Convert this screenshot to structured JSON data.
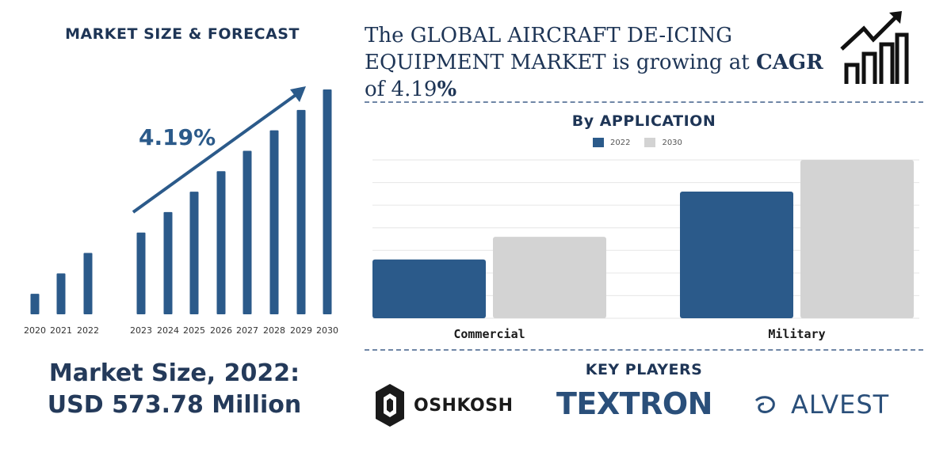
{
  "forecast": {
    "title": "MARKET SIZE & FORECAST",
    "cagr_label": "4.19%",
    "market_size_line1": "Market Size, 2022:",
    "market_size_line2": "USD 573.78 Million"
  },
  "headline": {
    "part1": "The GLOBAL AIRCRAFT DE-ICING EQUIPMENT MARKET is growing at ",
    "cagr_word": "CAGR",
    "part2": " of 4.19",
    "percent": "%"
  },
  "key_players": {
    "title": "KEY PLAYERS",
    "logos": [
      {
        "name": "OSHKOSH",
        "icon": "oshkosh-shield-icon"
      },
      {
        "name": "TEXTRON",
        "icon": ""
      },
      {
        "name": "ALVEST",
        "icon": "alvest-swirl-icon"
      }
    ]
  },
  "colors": {
    "primary": "#2b5a8a",
    "primary_dark": "#1e3556",
    "secondary": "#d3d3d3"
  },
  "chart_data": [
    {
      "type": "bar",
      "title": "MARKET SIZE & FORECAST",
      "categories": [
        "2020",
        "2021",
        "2022",
        "2023",
        "2024",
        "2025",
        "2026",
        "2027",
        "2028",
        "2029",
        "2030"
      ],
      "values": [
        1.0,
        2.0,
        3.0,
        4.0,
        5.0,
        6.0,
        7.0,
        8.0,
        9.0,
        10.0,
        11.0
      ],
      "annotation": "4.19%",
      "xlabel": "",
      "ylabel": "",
      "grid": false
    },
    {
      "type": "bar",
      "title": "By APPLICATION",
      "categories": [
        "Commercial",
        "Military"
      ],
      "series": [
        {
          "name": "2022",
          "values": [
            26,
            56
          ]
        },
        {
          "name": "2030",
          "values": [
            36,
            70
          ]
        }
      ],
      "ylim": [
        0,
        70
      ],
      "grid": true,
      "legend": "top-center"
    }
  ]
}
